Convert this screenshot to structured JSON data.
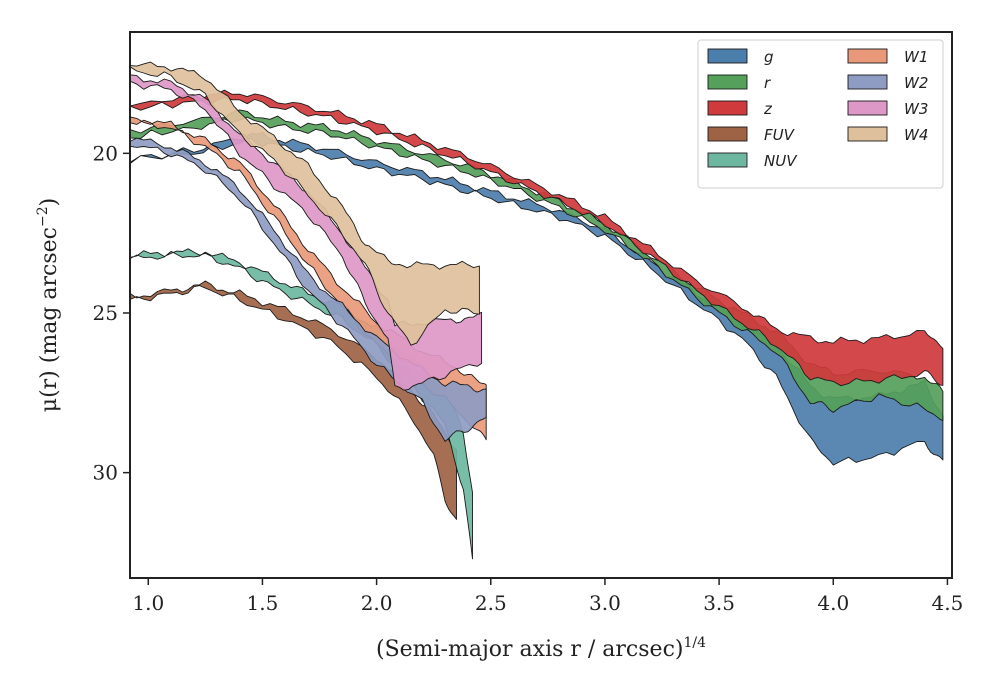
{
  "chart_data": {
    "type": "area",
    "title": "",
    "xlabel": "(Semi-major axis r / arcsec)",
    "xlabel_sup": "1/4",
    "ylabel": "μ(r) (mag arcsec",
    "ylabel_sup": "−2",
    "ylabel_end": ")",
    "xlim": [
      0.92,
      4.52
    ],
    "ylim": [
      33.3,
      16.2
    ],
    "y_inverted": true,
    "grid": false,
    "legend": {
      "placement": "top-right",
      "columns": 2
    },
    "x_ticks": [
      1.0,
      1.5,
      2.0,
      2.5,
      3.0,
      3.5,
      4.0,
      4.5
    ],
    "x_tick_labels": [
      "1.0",
      "1.5",
      "2.0",
      "2.5",
      "3.0",
      "3.5",
      "4.0",
      "4.5"
    ],
    "y_ticks": [
      20,
      25,
      30
    ],
    "y_tick_labels": [
      "20",
      "25",
      "30"
    ],
    "series": [
      {
        "name": "g",
        "color": "#4c7eab",
        "points": [
          [
            0.92,
            20.2,
            20.2
          ],
          [
            1.2,
            20.0,
            19.9
          ],
          [
            1.45,
            19.6,
            19.4
          ],
          [
            1.6,
            19.8,
            19.6
          ],
          [
            1.8,
            20.1,
            19.9
          ],
          [
            2.0,
            20.5,
            20.3
          ],
          [
            2.2,
            20.8,
            20.6
          ],
          [
            2.4,
            21.2,
            21.0
          ],
          [
            2.6,
            21.6,
            21.4
          ],
          [
            2.8,
            22.0,
            21.8
          ],
          [
            3.0,
            22.6,
            22.4
          ],
          [
            3.2,
            23.6,
            23.4
          ],
          [
            3.4,
            24.7,
            24.4
          ],
          [
            3.6,
            25.8,
            25.3
          ],
          [
            3.75,
            27.0,
            26.0
          ],
          [
            3.9,
            29.0,
            27.3
          ],
          [
            4.0,
            29.7,
            27.7
          ],
          [
            4.2,
            29.5,
            27.6
          ],
          [
            4.4,
            29.0,
            27.2
          ],
          [
            4.48,
            29.7,
            28.2
          ]
        ]
      },
      {
        "name": "r",
        "color": "#55a05a",
        "points": [
          [
            0.92,
            19.5,
            19.3
          ],
          [
            1.2,
            19.2,
            19.0
          ],
          [
            1.4,
            18.9,
            18.7
          ],
          [
            1.6,
            19.2,
            19.0
          ],
          [
            1.8,
            19.4,
            19.2
          ],
          [
            2.0,
            19.8,
            19.6
          ],
          [
            2.2,
            20.2,
            20.0
          ],
          [
            2.4,
            20.6,
            20.4
          ],
          [
            2.6,
            21.1,
            20.9
          ],
          [
            2.8,
            21.7,
            21.5
          ],
          [
            3.0,
            22.4,
            22.2
          ],
          [
            3.2,
            23.4,
            23.2
          ],
          [
            3.4,
            24.5,
            24.2
          ],
          [
            3.6,
            25.5,
            25.0
          ],
          [
            3.75,
            26.2,
            25.6
          ],
          [
            3.9,
            27.8,
            26.6
          ],
          [
            4.0,
            28.0,
            26.9
          ],
          [
            4.2,
            27.6,
            26.8
          ],
          [
            4.4,
            28.0,
            27.0
          ],
          [
            4.48,
            28.3,
            27.5
          ]
        ]
      },
      {
        "name": "z",
        "color": "#cf3a3c",
        "points": [
          [
            0.92,
            18.6,
            18.5
          ],
          [
            1.2,
            18.4,
            18.2
          ],
          [
            1.4,
            18.3,
            18.1
          ],
          [
            1.6,
            18.6,
            18.4
          ],
          [
            1.8,
            18.9,
            18.7
          ],
          [
            2.0,
            19.3,
            19.1
          ],
          [
            2.2,
            19.8,
            19.6
          ],
          [
            2.4,
            20.3,
            20.1
          ],
          [
            2.6,
            20.9,
            20.7
          ],
          [
            2.8,
            21.5,
            21.3
          ],
          [
            3.0,
            22.2,
            22.0
          ],
          [
            3.2,
            23.2,
            23.0
          ],
          [
            3.4,
            24.3,
            24.0
          ],
          [
            3.6,
            25.3,
            24.8
          ],
          [
            3.75,
            26.0,
            25.5
          ],
          [
            3.9,
            27.0,
            25.8
          ],
          [
            4.0,
            27.2,
            25.9
          ],
          [
            4.2,
            27.1,
            25.8
          ],
          [
            4.4,
            26.9,
            25.6
          ],
          [
            4.48,
            27.2,
            26.0
          ]
        ]
      },
      {
        "name": "FUV",
        "color": "#9e6244",
        "points": [
          [
            0.92,
            24.6,
            24.5
          ],
          [
            1.1,
            24.4,
            24.3
          ],
          [
            1.25,
            24.2,
            24.1
          ],
          [
            1.4,
            24.6,
            24.4
          ],
          [
            1.6,
            25.2,
            24.9
          ],
          [
            1.8,
            25.9,
            25.5
          ],
          [
            2.0,
            27.0,
            26.4
          ],
          [
            2.15,
            28.2,
            27.4
          ],
          [
            2.25,
            29.5,
            28.2
          ],
          [
            2.3,
            30.8,
            28.8
          ],
          [
            2.35,
            31.5,
            29.2
          ]
        ]
      },
      {
        "name": "NUV",
        "color": "#6db7a0",
        "points": [
          [
            0.92,
            23.3,
            23.2
          ],
          [
            1.1,
            23.2,
            23.1
          ],
          [
            1.25,
            23.2,
            23.1
          ],
          [
            1.4,
            23.6,
            23.4
          ],
          [
            1.55,
            24.2,
            23.9
          ],
          [
            1.7,
            24.7,
            24.4
          ],
          [
            1.85,
            25.2,
            24.8
          ],
          [
            2.0,
            26.0,
            25.5
          ],
          [
            2.15,
            27.2,
            26.4
          ],
          [
            2.3,
            28.5,
            27.4
          ],
          [
            2.38,
            30.5,
            28.8
          ],
          [
            2.42,
            32.8,
            30.6
          ]
        ]
      },
      {
        "name": "W1",
        "color": "#e9997a",
        "points": [
          [
            0.92,
            19.0,
            18.9
          ],
          [
            1.1,
            19.2,
            19.1
          ],
          [
            1.25,
            19.8,
            19.6
          ],
          [
            1.4,
            20.6,
            20.3
          ],
          [
            1.55,
            22.0,
            21.6
          ],
          [
            1.7,
            23.5,
            23.0
          ],
          [
            1.85,
            24.8,
            24.2
          ],
          [
            2.0,
            26.0,
            25.3
          ],
          [
            2.2,
            27.2,
            26.2
          ],
          [
            2.35,
            28.0,
            26.7
          ],
          [
            2.45,
            28.8,
            27.2
          ],
          [
            2.48,
            29.0,
            27.3
          ]
        ]
      },
      {
        "name": "W2",
        "color": "#8e9bc2",
        "points": [
          [
            0.92,
            19.7,
            19.5
          ],
          [
            1.1,
            20.0,
            19.8
          ],
          [
            1.25,
            20.5,
            20.3
          ],
          [
            1.4,
            21.4,
            21.1
          ],
          [
            1.55,
            22.8,
            22.4
          ],
          [
            1.7,
            24.3,
            23.8
          ],
          [
            1.85,
            25.4,
            24.8
          ],
          [
            2.0,
            26.6,
            25.8
          ],
          [
            2.2,
            27.8,
            26.8
          ],
          [
            2.3,
            29.0,
            27.2
          ],
          [
            2.4,
            28.6,
            27.3
          ],
          [
            2.48,
            28.3,
            27.4
          ]
        ]
      },
      {
        "name": "W3",
        "color": "#de98c8",
        "points": [
          [
            0.92,
            17.8,
            17.6
          ],
          [
            1.1,
            18.0,
            17.8
          ],
          [
            1.25,
            18.6,
            18.3
          ],
          [
            1.4,
            20.0,
            19.4
          ],
          [
            1.55,
            21.0,
            20.3
          ],
          [
            1.7,
            21.9,
            21.2
          ],
          [
            1.85,
            23.2,
            22.5
          ],
          [
            1.95,
            24.7,
            23.6
          ],
          [
            2.05,
            25.8,
            24.6
          ],
          [
            2.08,
            27.4,
            25.4
          ],
          [
            2.2,
            27.2,
            25.3
          ],
          [
            2.35,
            26.8,
            25.2
          ],
          [
            2.46,
            26.5,
            25.1
          ]
        ]
      },
      {
        "name": "W4",
        "color": "#dfc09c",
        "points": [
          [
            0.92,
            17.4,
            17.2
          ],
          [
            1.1,
            17.6,
            17.3
          ],
          [
            1.25,
            18.2,
            17.6
          ],
          [
            1.4,
            19.4,
            18.7
          ],
          [
            1.55,
            20.2,
            19.5
          ],
          [
            1.7,
            21.3,
            20.4
          ],
          [
            1.85,
            22.5,
            21.7
          ],
          [
            1.95,
            23.5,
            22.8
          ],
          [
            2.05,
            25.0,
            23.4
          ],
          [
            2.15,
            26.0,
            23.5
          ],
          [
            2.3,
            24.9,
            23.5
          ],
          [
            2.45,
            25.0,
            23.5
          ]
        ]
      }
    ]
  }
}
